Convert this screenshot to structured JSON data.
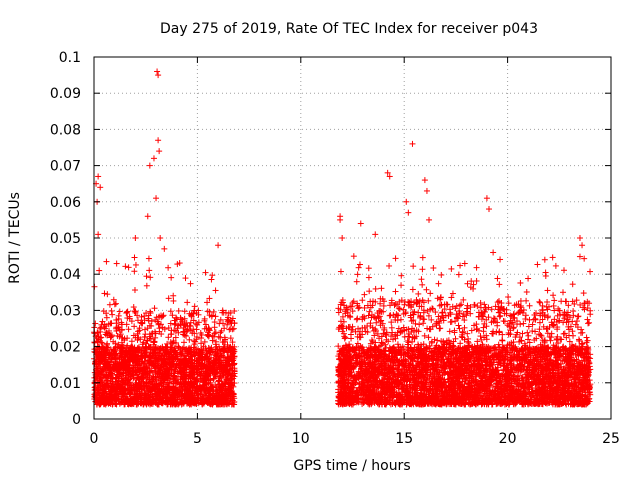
{
  "chart_data": {
    "type": "scatter",
    "title": "Day 275 of 2019, Rate Of TEC Index for receiver p043",
    "xlabel": "GPS time / hours",
    "ylabel": "ROTI / TECUs",
    "xlim": [
      0,
      25
    ],
    "ylim": [
      0,
      0.1
    ],
    "x_ticks": [
      "0",
      "5",
      "10",
      "15",
      "20",
      "25"
    ],
    "y_ticks": [
      "0",
      "0.01",
      "0.02",
      "0.03",
      "0.04",
      "0.05",
      "0.06",
      "0.07",
      "0.08",
      "0.09",
      "0.1"
    ],
    "grid": true,
    "marker": "+",
    "series_color": "#ff0000",
    "gap_hours": [
      6.8,
      11.8
    ],
    "notable_points": [
      {
        "x": 0.1,
        "y": 0.065
      },
      {
        "x": 0.2,
        "y": 0.067
      },
      {
        "x": 0.3,
        "y": 0.064
      },
      {
        "x": 0.2,
        "y": 0.051
      },
      {
        "x": 0.25,
        "y": 0.041
      },
      {
        "x": 0.15,
        "y": 0.06
      },
      {
        "x": 2.0,
        "y": 0.05
      },
      {
        "x": 2.6,
        "y": 0.056
      },
      {
        "x": 2.7,
        "y": 0.07
      },
      {
        "x": 2.9,
        "y": 0.072
      },
      {
        "x": 3.0,
        "y": 0.061
      },
      {
        "x": 3.05,
        "y": 0.096
      },
      {
        "x": 3.1,
        "y": 0.095
      },
      {
        "x": 3.1,
        "y": 0.077
      },
      {
        "x": 3.15,
        "y": 0.074
      },
      {
        "x": 3.2,
        "y": 0.05
      },
      {
        "x": 3.4,
        "y": 0.047
      },
      {
        "x": 6.0,
        "y": 0.048
      },
      {
        "x": 11.9,
        "y": 0.056
      },
      {
        "x": 11.9,
        "y": 0.055
      },
      {
        "x": 12.0,
        "y": 0.05
      },
      {
        "x": 12.9,
        "y": 0.054
      },
      {
        "x": 13.6,
        "y": 0.051
      },
      {
        "x": 14.2,
        "y": 0.068
      },
      {
        "x": 14.3,
        "y": 0.067
      },
      {
        "x": 15.4,
        "y": 0.076
      },
      {
        "x": 15.1,
        "y": 0.06
      },
      {
        "x": 15.2,
        "y": 0.057
      },
      {
        "x": 16.0,
        "y": 0.066
      },
      {
        "x": 16.1,
        "y": 0.063
      },
      {
        "x": 16.2,
        "y": 0.055
      },
      {
        "x": 19.0,
        "y": 0.061
      },
      {
        "x": 19.1,
        "y": 0.058
      },
      {
        "x": 19.3,
        "y": 0.046
      },
      {
        "x": 21.8,
        "y": 0.044
      },
      {
        "x": 23.5,
        "y": 0.05
      },
      {
        "x": 23.6,
        "y": 0.048
      }
    ],
    "bulk_ranges": [
      {
        "x": [
          0,
          6.8
        ],
        "y_core": [
          0.004,
          0.02
        ],
        "y_upper": 0.03
      },
      {
        "x": [
          11.8,
          24
        ],
        "y_core": [
          0.004,
          0.02
        ],
        "y_upper": 0.033
      }
    ]
  }
}
